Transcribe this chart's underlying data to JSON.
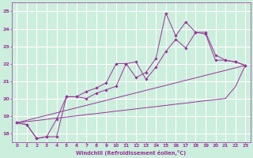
{
  "xlabel": "Windchill (Refroidissement éolien,°C)",
  "bg_color": "#cceedd",
  "grid_color": "#aaddcc",
  "line_color": "#993399",
  "xlim": [
    -0.5,
    23.5
  ],
  "ylim": [
    17.5,
    25.5
  ],
  "yticks": [
    18,
    19,
    20,
    21,
    22,
    23,
    24,
    25
  ],
  "xticks": [
    0,
    1,
    2,
    3,
    4,
    5,
    6,
    7,
    8,
    9,
    10,
    11,
    12,
    13,
    14,
    15,
    16,
    17,
    18,
    19,
    20,
    21,
    22,
    23
  ],
  "line1_x": [
    0,
    1,
    2,
    3,
    4,
    5,
    6,
    7,
    8,
    9,
    10,
    11,
    12,
    13,
    14,
    15,
    16,
    17,
    18,
    19,
    20,
    21,
    22,
    23
  ],
  "line1_y": [
    18.6,
    18.5,
    17.7,
    17.8,
    18.8,
    20.1,
    20.1,
    20.4,
    20.6,
    20.9,
    22.0,
    22.0,
    21.2,
    21.5,
    22.3,
    24.9,
    23.6,
    24.4,
    23.8,
    23.8,
    22.5,
    22.2,
    22.1,
    21.9
  ],
  "line2_x": [
    0,
    1,
    2,
    3,
    4,
    5,
    6,
    7,
    8,
    9,
    10,
    11,
    12,
    13,
    14,
    15,
    16,
    17,
    18,
    19,
    20,
    21,
    22,
    23
  ],
  "line2_y": [
    18.6,
    18.5,
    17.7,
    17.8,
    17.8,
    20.1,
    20.1,
    20.0,
    20.3,
    20.5,
    20.7,
    22.0,
    22.1,
    21.1,
    21.8,
    22.7,
    23.4,
    22.9,
    23.8,
    23.7,
    22.2,
    22.2,
    22.1,
    21.9
  ],
  "line3_x": [
    0,
    1,
    2,
    3,
    4,
    5,
    6,
    7,
    8,
    9,
    10,
    11,
    12,
    13,
    14,
    15,
    16,
    17,
    18,
    19,
    20,
    21,
    22,
    23
  ],
  "line3_y": [
    18.6,
    18.67,
    18.73,
    18.8,
    18.87,
    18.93,
    19.0,
    19.07,
    19.13,
    19.2,
    19.27,
    19.33,
    19.4,
    19.47,
    19.53,
    19.6,
    19.67,
    19.73,
    19.8,
    19.87,
    19.93,
    20.0,
    20.67,
    21.9
  ],
  "line4_x": [
    0,
    23
  ],
  "line4_y": [
    18.6,
    21.9
  ]
}
